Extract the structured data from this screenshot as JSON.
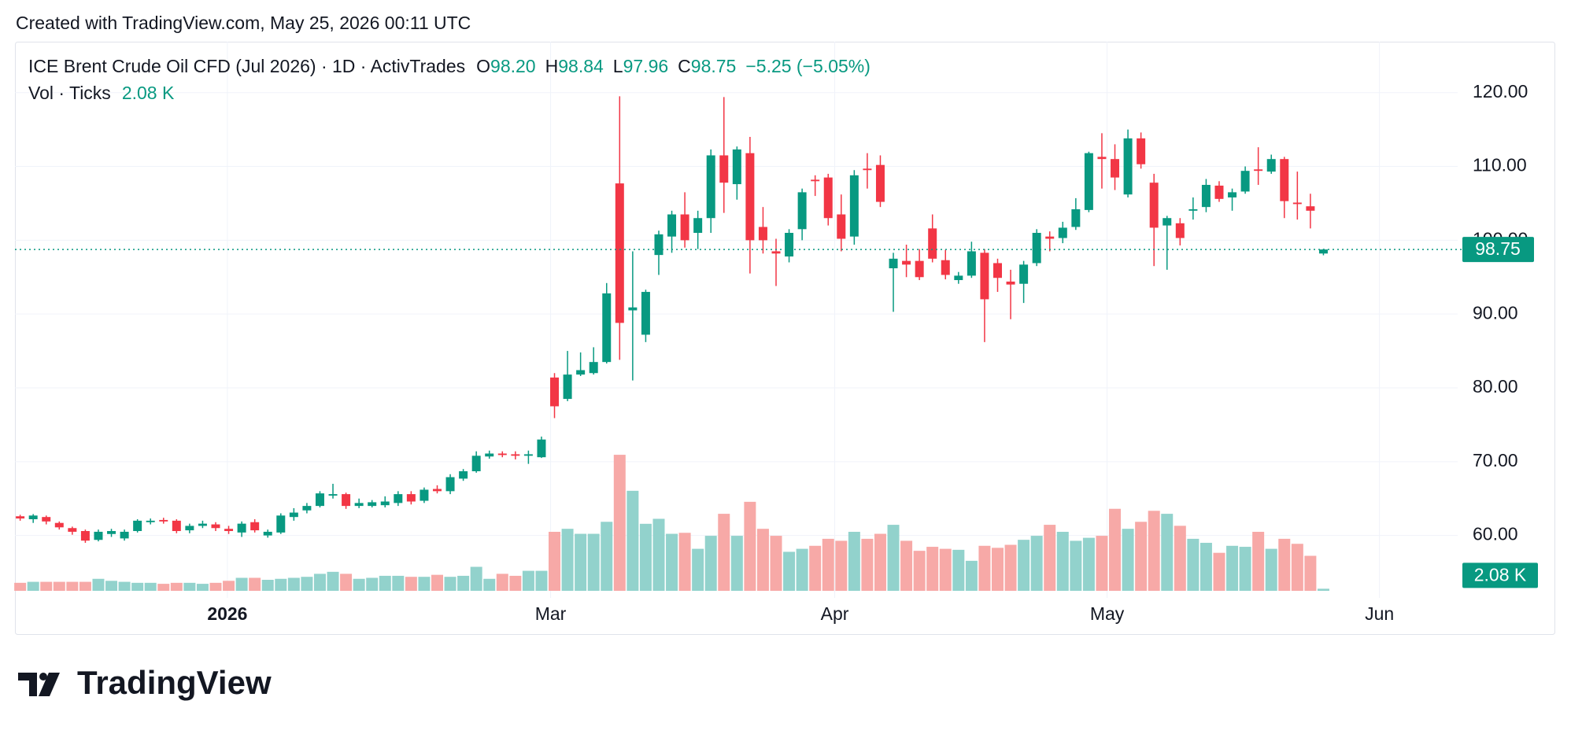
{
  "header": {
    "created": "Created with TradingView.com, May 25, 2026 00:11 UTC",
    "symbol": "ICE Brent Crude Oil CFD (Jul 2026) · 1D · ActivTrades",
    "o_label": "O",
    "o_value": "98.20",
    "h_label": "H",
    "h_value": "98.84",
    "l_label": "L",
    "l_value": "97.96",
    "c_label": "C",
    "c_value": "98.75",
    "change": "−5.25 (−5.05%)",
    "vol_label": "Vol · Ticks",
    "vol_value": "2.08 K"
  },
  "chart_data": {
    "type": "candlestick",
    "open": [
      62.6,
      62.2,
      62.5,
      61.7,
      61.0,
      60.6,
      59.4,
      60.2,
      59.6,
      60.6,
      61.8,
      62.1,
      62.0,
      60.7,
      61.3,
      61.5,
      60.9,
      60.4,
      61.8,
      60.0,
      60.4,
      62.5,
      63.4,
      64.0,
      65.4,
      65.6,
      64.0,
      64.0,
      64.1,
      64.4,
      65.6,
      64.7,
      66.3,
      66.0,
      67.7,
      68.7,
      70.7,
      71.1,
      71.0,
      70.8,
      70.6,
      81.4,
      78.5,
      81.8,
      82.0,
      83.5,
      107.7,
      90.5,
      87.2,
      98.0,
      100.5,
      103.5,
      101.0,
      103.0,
      111.5,
      107.6,
      111.8,
      101.8,
      98.5,
      97.8,
      101.5,
      108.2,
      108.5,
      103.5,
      100.5,
      109.7,
      110.2,
      96.2,
      97.2,
      97.2,
      101.6,
      97.3,
      94.6,
      95.2,
      98.3,
      96.9,
      94.4,
      94.1,
      96.9,
      100.5,
      100.3,
      101.8,
      104.1,
      111.3,
      111.0,
      106.2,
      113.8,
      107.8,
      102.0,
      102.3,
      104.0,
      104.5,
      107.4,
      105.8,
      106.6,
      109.6,
      109.3,
      111.0,
      105.1,
      104.6,
      98.2
    ],
    "high": [
      62.8,
      62.9,
      62.7,
      61.9,
      61.2,
      60.8,
      60.8,
      60.9,
      60.8,
      62.2,
      62.3,
      62.4,
      62.2,
      61.6,
      62.0,
      61.8,
      61.3,
      61.9,
      62.2,
      60.8,
      63.0,
      63.7,
      64.4,
      66.0,
      67.0,
      65.8,
      65.0,
      64.8,
      65.3,
      66.0,
      66.0,
      66.5,
      66.8,
      68.3,
      69.0,
      71.4,
      71.5,
      71.4,
      71.4,
      71.5,
      73.4,
      82.0,
      85.0,
      84.8,
      85.5,
      94.2,
      119.5,
      98.5,
      93.3,
      101.3,
      104.0,
      106.5,
      104.0,
      112.3,
      119.4,
      112.7,
      114.0,
      104.5,
      100.2,
      101.5,
      107.0,
      108.8,
      109.0,
      106.2,
      109.5,
      111.8,
      111.5,
      98.3,
      99.4,
      98.8,
      103.5,
      98.7,
      95.7,
      99.8,
      98.8,
      97.5,
      96.0,
      97.2,
      101.5,
      101.2,
      102.5,
      105.7,
      112.0,
      114.5,
      113.0,
      115.0,
      114.6,
      109.0,
      103.3,
      103.0,
      105.8,
      108.3,
      108.0,
      107.0,
      110.0,
      112.6,
      111.6,
      111.3,
      109.3,
      106.3,
      98.84
    ],
    "low": [
      62.0,
      61.7,
      61.5,
      60.8,
      60.1,
      59.0,
      59.2,
      59.8,
      59.3,
      60.4,
      61.5,
      61.6,
      60.3,
      60.3,
      61.0,
      60.6,
      60.2,
      59.8,
      60.4,
      59.7,
      60.2,
      62.0,
      63.0,
      63.8,
      65.0,
      63.6,
      63.7,
      63.8,
      63.8,
      64.0,
      64.2,
      64.4,
      65.7,
      65.6,
      67.4,
      68.5,
      70.4,
      70.6,
      70.3,
      69.7,
      70.5,
      75.9,
      78.2,
      81.6,
      81.8,
      83.3,
      83.8,
      81.0,
      86.2,
      95.3,
      98.3,
      99.0,
      98.8,
      101.0,
      103.7,
      105.5,
      95.5,
      98.2,
      93.8,
      97.0,
      100.0,
      106.0,
      102.0,
      98.5,
      99.4,
      107.0,
      104.5,
      90.3,
      95.0,
      94.6,
      97.0,
      94.7,
      94.1,
      94.9,
      86.2,
      93.0,
      89.3,
      91.5,
      96.5,
      98.5,
      99.6,
      101.4,
      103.8,
      107.0,
      106.8,
      105.8,
      109.7,
      96.5,
      96.0,
      99.3,
      102.8,
      103.8,
      105.2,
      104.0,
      106.3,
      107.5,
      109.0,
      103.0,
      102.8,
      101.6,
      97.96
    ],
    "close": [
      62.3,
      62.7,
      61.9,
      61.1,
      60.5,
      59.3,
      60.5,
      60.6,
      60.5,
      62.0,
      62.0,
      61.9,
      60.6,
      61.3,
      61.6,
      61.0,
      60.6,
      61.6,
      60.7,
      60.5,
      62.7,
      63.1,
      64.0,
      65.7,
      65.6,
      64.0,
      64.4,
      64.5,
      64.6,
      65.6,
      64.6,
      66.2,
      66.0,
      67.9,
      68.7,
      70.8,
      71.1,
      70.9,
      70.8,
      71.0,
      73.0,
      77.5,
      81.8,
      82.4,
      83.5,
      92.8,
      88.8,
      90.9,
      93.0,
      100.8,
      103.5,
      100.0,
      103.0,
      111.5,
      107.8,
      112.3,
      100.0,
      100.0,
      98.2,
      101.0,
      106.5,
      108.0,
      103.0,
      100.2,
      108.8,
      109.5,
      105.2,
      97.5,
      96.7,
      95.0,
      97.5,
      95.3,
      95.2,
      98.5,
      92.0,
      94.9,
      94.0,
      96.7,
      101.0,
      100.2,
      101.7,
      104.2,
      111.8,
      111.0,
      108.5,
      113.8,
      110.3,
      101.7,
      103.0,
      100.3,
      104.2,
      107.5,
      105.6,
      106.5,
      109.4,
      109.4,
      111.0,
      105.3,
      104.9,
      104.0,
      98.75
    ],
    "volume": [
      8,
      9,
      9,
      9,
      9,
      9,
      12,
      10,
      9,
      8,
      8,
      7,
      8,
      8,
      7,
      8,
      10,
      13,
      13,
      11,
      12,
      13,
      14,
      17,
      19,
      17,
      12,
      13,
      15,
      15,
      14,
      14,
      16,
      14,
      15,
      24,
      12,
      17,
      15,
      20,
      20,
      59,
      62,
      57,
      57,
      69,
      136,
      100,
      67,
      72,
      57,
      58,
      42,
      55,
      77,
      55,
      89,
      62,
      55,
      39,
      42,
      45,
      52,
      50,
      59,
      52,
      57,
      66,
      50,
      40,
      44,
      42,
      41,
      30,
      45,
      43,
      46,
      51,
      55,
      66,
      59,
      50,
      53,
      55,
      82,
      62,
      69,
      80,
      77,
      65,
      52,
      48,
      38,
      45,
      44,
      59,
      42,
      52,
      47,
      35,
      2.08
    ],
    "volume_value_labels": {
      "100": "2.08 K"
    },
    "ylim": [
      52.5,
      126.9
    ],
    "yticks": [
      {
        "value": 60,
        "label": "60.00"
      },
      {
        "value": 70,
        "label": "70.00"
      },
      {
        "value": 80,
        "label": "80.00"
      },
      {
        "value": 90,
        "label": "90.00"
      },
      {
        "value": 100,
        "label": "100.00"
      },
      {
        "value": 110,
        "label": "110.00"
      },
      {
        "value": 120,
        "label": "120.00"
      }
    ],
    "vlim": [
      0,
      140
    ],
    "xlim": [
      -0.4,
      110.3
    ],
    "xticks": [
      {
        "value": 15.9,
        "label": "2026"
      },
      {
        "value": 40.7,
        "label": "Mar"
      },
      {
        "value": 62.5,
        "label": "Apr"
      },
      {
        "value": 83.4,
        "label": "May"
      },
      {
        "value": 104.3,
        "label": "Jun"
      }
    ],
    "grid": true,
    "up_color": "#089981",
    "down_color": "#f23645",
    "vol_up_color": "#92d2cc",
    "vol_down_color": "#f7a9a7"
  },
  "footer": {
    "brand": "TradingView"
  }
}
